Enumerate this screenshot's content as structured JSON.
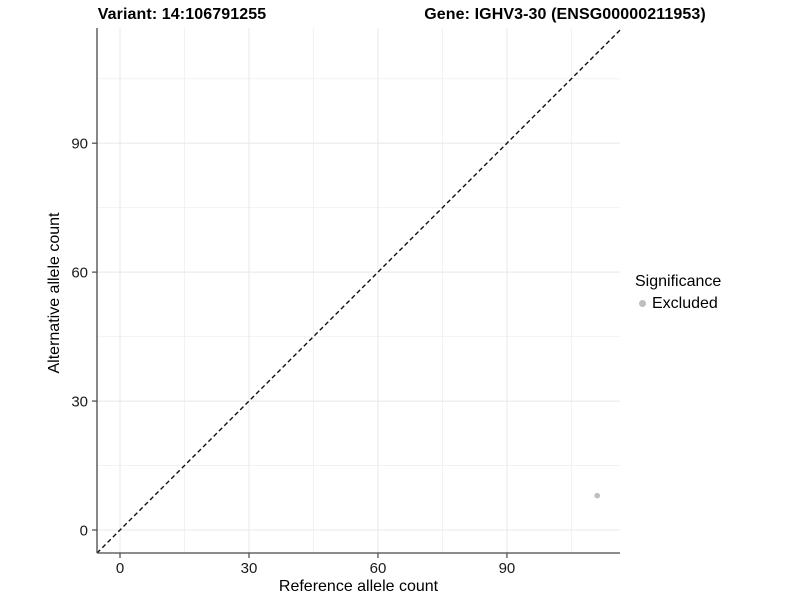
{
  "header": {
    "variant_title": "Variant: 14:106791255",
    "gene_title": "Gene: IGHV3-30 (ENSG00000211953)"
  },
  "chart_data": {
    "type": "scatter",
    "xlabel": "Reference allele count",
    "ylabel": "Alternative allele count",
    "xlim": [
      -5.35,
      116.3
    ],
    "ylim": [
      -5.35,
      116.8
    ],
    "x_major_ticks": [
      0,
      30,
      60,
      90
    ],
    "y_major_ticks": [
      0,
      30,
      60,
      90
    ],
    "x_minor_ticks": [
      15,
      45,
      75,
      105
    ],
    "y_minor_ticks": [
      15,
      45,
      75,
      105
    ],
    "grid": "major and minor gridlines on white panel",
    "identity_line": {
      "style": "dashed",
      "color": "#111111",
      "from": -5.35,
      "to": 116.3
    },
    "points": [
      {
        "x": 111,
        "y": 8,
        "significance": "Excluded",
        "color": "#bebebe"
      }
    ],
    "legend": {
      "position": "right",
      "title": "Significance",
      "items": [
        {
          "label": "Excluded",
          "color": "#bebebe"
        }
      ]
    },
    "colors": {
      "axis": "#474747",
      "tick_label": "#1a1a1a",
      "grid_major": "#e8e8e8",
      "grid_minor": "#f2f2f2",
      "point": "#bebebe"
    }
  }
}
